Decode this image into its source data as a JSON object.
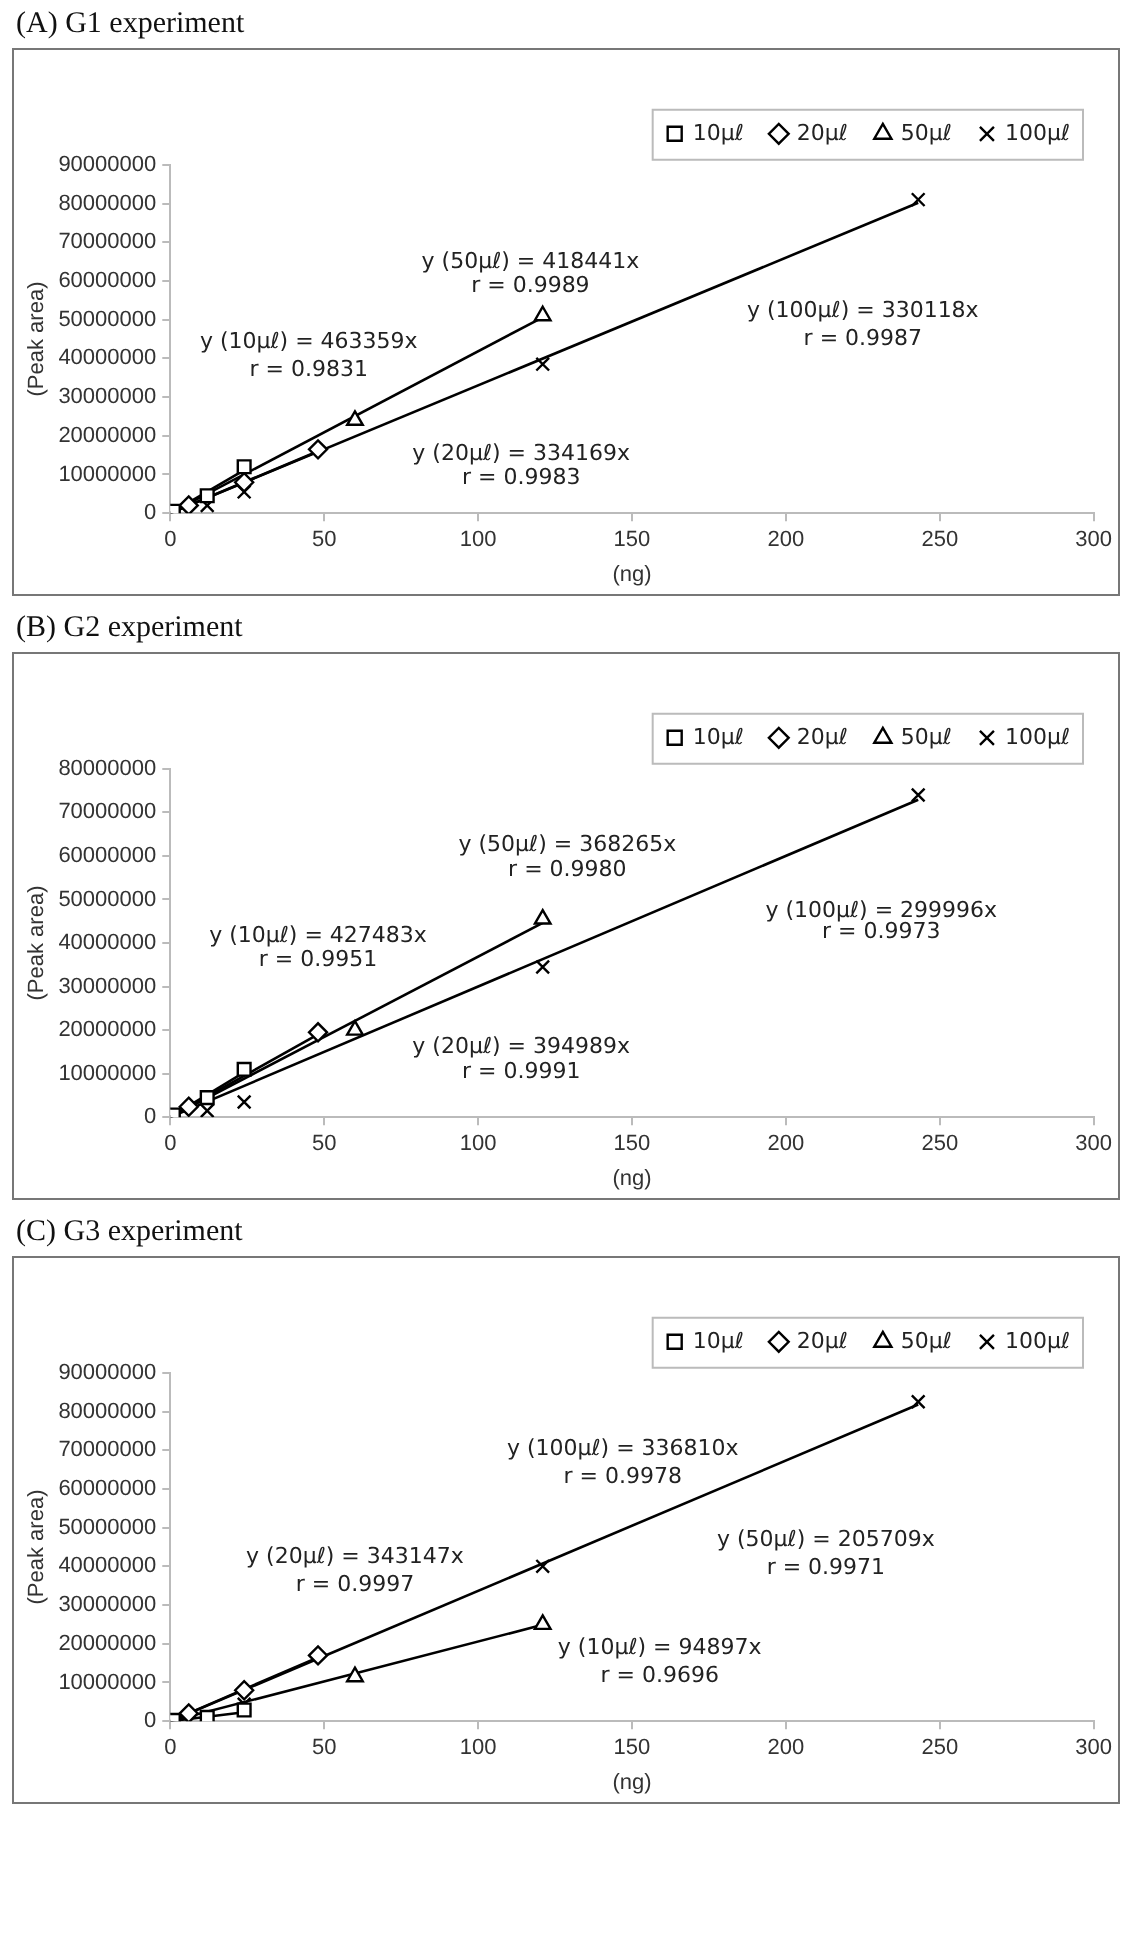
{
  "chart_data": [
    {
      "type": "scatter",
      "title": "(A) G1 experiment",
      "xlabel": "(ng)",
      "ylabel": "(Peak area)",
      "xlim": [
        0,
        300
      ],
      "xticks": [
        0,
        50,
        100,
        150,
        200,
        250,
        300
      ],
      "ylim": [
        0,
        90000000
      ],
      "yticks": [
        0,
        10000000,
        20000000,
        30000000,
        40000000,
        50000000,
        60000000,
        70000000,
        80000000,
        90000000
      ],
      "grid": false,
      "legend": "top right",
      "series": [
        {
          "name": "10μℓ",
          "type": "scatter",
          "marker": "square",
          "color": "#000000",
          "x": [
            1,
            12,
            24
          ],
          "values": [
            500000,
            4500000,
            12000000
          ]
        },
        {
          "name": "20μℓ",
          "type": "scatter",
          "marker": "diamond",
          "color": "#000000",
          "x": [
            6,
            24,
            48
          ],
          "values": [
            2000000,
            8000000,
            16500000
          ]
        },
        {
          "name": "50μℓ",
          "type": "scatter",
          "marker": "triangle",
          "color": "#000000",
          "x": [
            60,
            121
          ],
          "values": [
            24000000,
            51000000
          ]
        },
        {
          "name": "100μℓ",
          "type": "scatter",
          "marker": "cross",
          "color": "#000000",
          "x": [
            12,
            24,
            121,
            243
          ],
          "values": [
            2000000,
            5500000,
            38500000,
            81000000
          ]
        },
        {
          "type": "line",
          "marker": "none",
          "color": "#000000",
          "x": [
            0,
            24
          ],
          "values": [
            0,
            11100000
          ]
        },
        {
          "type": "line",
          "marker": "none",
          "color": "#000000",
          "x": [
            0,
            48
          ],
          "values": [
            0,
            16000000
          ]
        },
        {
          "type": "line",
          "marker": "none",
          "color": "#000000",
          "x": [
            0,
            121
          ],
          "values": [
            0,
            50600000
          ]
        },
        {
          "type": "line",
          "marker": "none",
          "color": "#000000",
          "x": [
            0,
            243
          ],
          "values": [
            0,
            80200000
          ]
        }
      ],
      "annotations": [
        "y (50μℓ) = 418441x",
        "r = 0.9989",
        "y (10μℓ) = 463359x",
        "r = 0.9831",
        "y (100μℓ) = 330118x",
        "r = 0.9987",
        "y (20μℓ) = 334169x",
        "r = 0.9983"
      ]
    },
    {
      "type": "scatter",
      "title": "(B) G2 experiment",
      "xlabel": "(ng)",
      "ylabel": "(Peak area)",
      "xlim": [
        0,
        300
      ],
      "xticks": [
        0,
        50,
        100,
        150,
        200,
        250,
        300
      ],
      "ylim": [
        0,
        80000000
      ],
      "yticks": [
        0,
        10000000,
        20000000,
        30000000,
        40000000,
        50000000,
        60000000,
        70000000,
        80000000
      ],
      "grid": false,
      "legend": "top right",
      "series": [
        {
          "name": "10μℓ",
          "type": "scatter",
          "marker": "square",
          "color": "#000000",
          "x": [
            1,
            12,
            24
          ],
          "values": [
            500000,
            4500000,
            11000000
          ]
        },
        {
          "name": "20μℓ",
          "type": "scatter",
          "marker": "diamond",
          "color": "#000000",
          "x": [
            6,
            24,
            48
          ],
          "values": [
            2400000,
            null,
            19500000
          ]
        },
        {
          "name": "50μℓ",
          "type": "scatter",
          "marker": "triangle",
          "color": "#000000",
          "x": [
            60,
            121
          ],
          "values": [
            20000000,
            45500000
          ]
        },
        {
          "name": "100μℓ",
          "type": "scatter",
          "marker": "cross",
          "color": "#000000",
          "x": [
            12,
            24,
            121,
            243
          ],
          "values": [
            1500000,
            3500000,
            34500000,
            74000000
          ]
        },
        {
          "type": "line",
          "marker": "none",
          "color": "#000000",
          "x": [
            0,
            24
          ],
          "values": [
            0,
            10300000
          ]
        },
        {
          "type": "line",
          "marker": "none",
          "color": "#000000",
          "x": [
            0,
            48
          ],
          "values": [
            0,
            19000000
          ]
        },
        {
          "type": "line",
          "marker": "none",
          "color": "#000000",
          "x": [
            0,
            121
          ],
          "values": [
            0,
            44600000
          ]
        },
        {
          "type": "line",
          "marker": "none",
          "color": "#000000",
          "x": [
            0,
            243
          ],
          "values": [
            0,
            72900000
          ]
        }
      ],
      "annotations": [
        "y (50μℓ) = 368265x",
        "r = 0.9980",
        "y (10μℓ) = 427483x",
        "r = 0.9951",
        "y (100μℓ) = 299996x",
        "r = 0.9973",
        "y (20μℓ) = 394989x",
        "r = 0.9991"
      ]
    },
    {
      "type": "scatter",
      "title": "(C) G3 experiment",
      "xlabel": "(ng)",
      "ylabel": "(Peak area)",
      "xlim": [
        0,
        300
      ],
      "xticks": [
        0,
        50,
        100,
        150,
        200,
        250,
        300
      ],
      "ylim": [
        0,
        90000000
      ],
      "yticks": [
        0,
        10000000,
        20000000,
        30000000,
        40000000,
        50000000,
        60000000,
        70000000,
        80000000,
        90000000
      ],
      "grid": false,
      "legend": "top right",
      "series": [
        {
          "name": "10μℓ",
          "type": "scatter",
          "marker": "square",
          "color": "#000000",
          "x": [
            1,
            12,
            24
          ],
          "values": [
            200000,
            1000000,
            2900000
          ]
        },
        {
          "name": "20μℓ",
          "type": "scatter",
          "marker": "diamond",
          "color": "#000000",
          "x": [
            6,
            24,
            48
          ],
          "values": [
            2000000,
            8000000,
            17000000
          ]
        },
        {
          "name": "50μℓ",
          "type": "scatter",
          "marker": "triangle",
          "color": "#000000",
          "x": [
            60,
            121
          ],
          "values": [
            11500000,
            25000000
          ]
        },
        {
          "name": "100μℓ",
          "type": "scatter",
          "marker": "cross",
          "color": "#000000",
          "x": [
            24,
            121,
            243
          ],
          "values": [
            4400000,
            40000000,
            82500000
          ]
        },
        {
          "type": "line",
          "marker": "none",
          "color": "#000000",
          "x": [
            0,
            24
          ],
          "values": [
            0,
            2300000
          ]
        },
        {
          "type": "line",
          "marker": "none",
          "color": "#000000",
          "x": [
            0,
            48
          ],
          "values": [
            0,
            16500000
          ]
        },
        {
          "type": "line",
          "marker": "none",
          "color": "#000000",
          "x": [
            0,
            121
          ],
          "values": [
            0,
            24900000
          ]
        },
        {
          "type": "line",
          "marker": "none",
          "color": "#000000",
          "x": [
            0,
            243
          ],
          "values": [
            0,
            81800000
          ]
        }
      ],
      "annotations": [
        "y (100μℓ) = 336810x",
        "r = 0.9978",
        "y (20μℓ) = 343147x",
        "r = 0.9997",
        "y (50μℓ) = 205709x",
        "r = 0.9971",
        "y (10μℓ) = 94897x",
        "r = 0.9696"
      ]
    }
  ]
}
